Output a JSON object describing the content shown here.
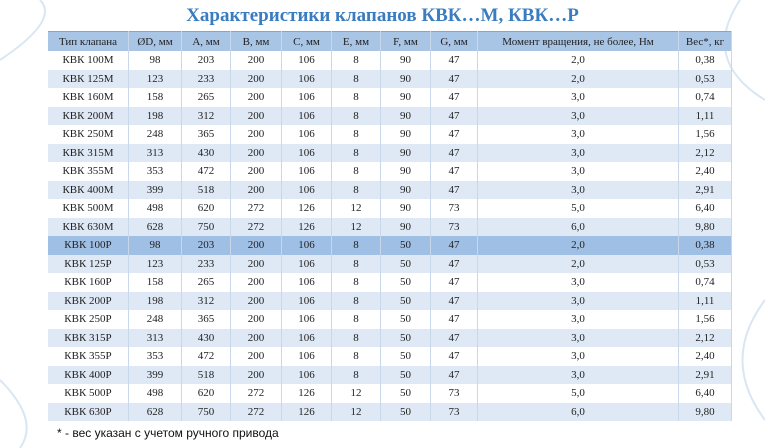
{
  "header": {
    "title": "Характеристики клапанов КВК…М, КВК…Р"
  },
  "table": {
    "columns": [
      "Тип клапана",
      "ØD, мм",
      "A, мм",
      "B, мм",
      "C, мм",
      "E, мм",
      "F, мм",
      "G, мм",
      "Момент вращения,  не более, Нм",
      "Вес*, кг"
    ],
    "rows": [
      [
        "КВК 100М",
        "98",
        "203",
        "200",
        "106",
        "8",
        "90",
        "47",
        "2,0",
        "0,38"
      ],
      [
        "КВК 125М",
        "123",
        "233",
        "200",
        "106",
        "8",
        "90",
        "47",
        "2,0",
        "0,53"
      ],
      [
        "КВК 160М",
        "158",
        "265",
        "200",
        "106",
        "8",
        "90",
        "47",
        "3,0",
        "0,74"
      ],
      [
        "КВК 200М",
        "198",
        "312",
        "200",
        "106",
        "8",
        "90",
        "47",
        "3,0",
        "1,11"
      ],
      [
        "КВК 250М",
        "248",
        "365",
        "200",
        "106",
        "8",
        "90",
        "47",
        "3,0",
        "1,56"
      ],
      [
        "КВК 315М",
        "313",
        "430",
        "200",
        "106",
        "8",
        "90",
        "47",
        "3,0",
        "2,12"
      ],
      [
        "КВК 355М",
        "353",
        "472",
        "200",
        "106",
        "8",
        "90",
        "47",
        "3,0",
        "2,40"
      ],
      [
        "КВК 400М",
        "399",
        "518",
        "200",
        "106",
        "8",
        "90",
        "47",
        "3,0",
        "2,91"
      ],
      [
        "КВК 500М",
        "498",
        "620",
        "272",
        "126",
        "12",
        "90",
        "73",
        "5,0",
        "6,40"
      ],
      [
        "КВК 630М",
        "628",
        "750",
        "272",
        "126",
        "12",
        "90",
        "73",
        "6,0",
        "9,80"
      ],
      [
        "КВК 100Р",
        "98",
        "203",
        "200",
        "106",
        "8",
        "50",
        "47",
        "2,0",
        "0,38"
      ],
      [
        "КВК 125Р",
        "123",
        "233",
        "200",
        "106",
        "8",
        "50",
        "47",
        "2,0",
        "0,53"
      ],
      [
        "КВК 160Р",
        "158",
        "265",
        "200",
        "106",
        "8",
        "50",
        "47",
        "3,0",
        "0,74"
      ],
      [
        "КВК 200Р",
        "198",
        "312",
        "200",
        "106",
        "8",
        "50",
        "47",
        "3,0",
        "1,11"
      ],
      [
        "КВК 250Р",
        "248",
        "365",
        "200",
        "106",
        "8",
        "50",
        "47",
        "3,0",
        "1,56"
      ],
      [
        "КВК 315Р",
        "313",
        "430",
        "200",
        "106",
        "8",
        "50",
        "47",
        "3,0",
        "2,12"
      ],
      [
        "КВК 355Р",
        "353",
        "472",
        "200",
        "106",
        "8",
        "50",
        "47",
        "3,0",
        "2,40"
      ],
      [
        "КВК 400Р",
        "399",
        "518",
        "200",
        "106",
        "8",
        "50",
        "47",
        "3,0",
        "2,91"
      ],
      [
        "КВК 500Р",
        "498",
        "620",
        "272",
        "126",
        "12",
        "50",
        "73",
        "5,0",
        "6,40"
      ],
      [
        "КВК 630Р",
        "628",
        "750",
        "272",
        "126",
        "12",
        "50",
        "73",
        "6,0",
        "9,80"
      ]
    ]
  },
  "footnote": "* - вес указан с учетом ручного привода"
}
